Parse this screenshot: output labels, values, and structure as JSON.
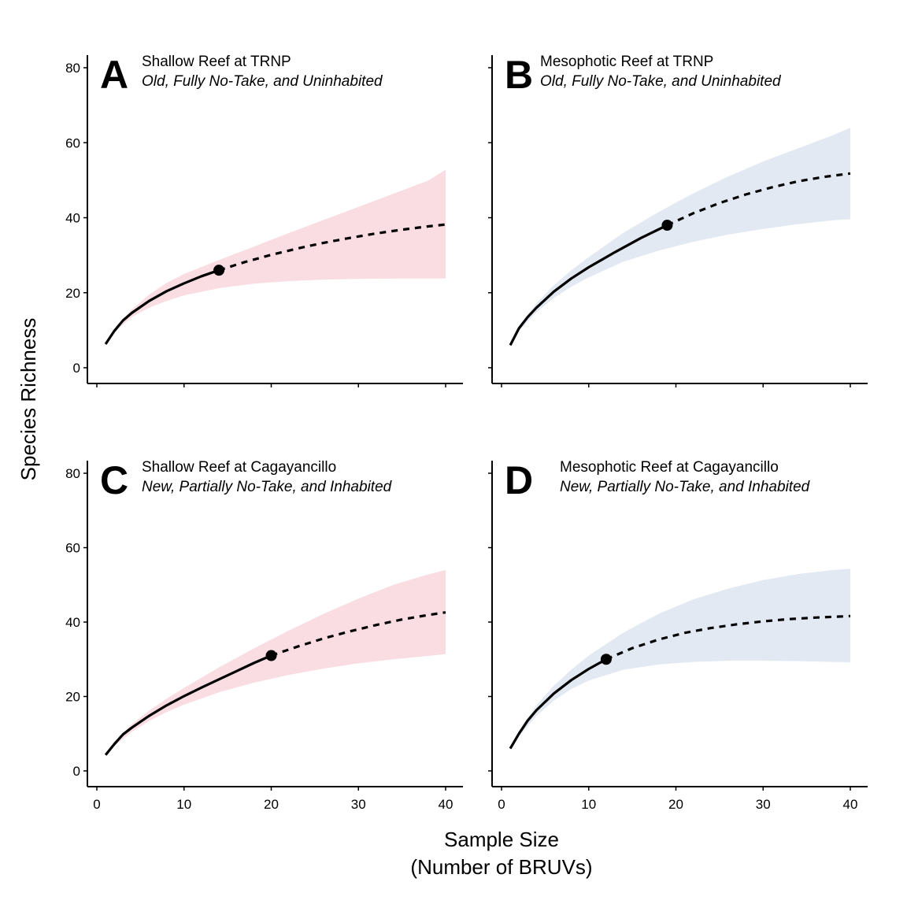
{
  "axis": {
    "xlabel_line1": "Sample Size",
    "xlabel_line2": "(Number of BRUVs)",
    "ylabel": "Species Richness"
  },
  "colors": {
    "shallow_band": "#f9dde2",
    "mesophotic_band": "#e2e9f3",
    "line": "#000000"
  },
  "chart_data": [
    {
      "type": "line",
      "panel": "A",
      "title": "Shallow Reef at TRNP",
      "subtitle": "Old, Fully No-Take, and Uninhabited",
      "band_color": "#f9dde2",
      "xlim": [
        0,
        40
      ],
      "ylim": [
        0,
        80
      ],
      "xticks": [
        0,
        10,
        20,
        30,
        40
      ],
      "yticks": [
        0,
        20,
        40,
        60,
        80
      ],
      "show_x_tick_labels": false,
      "show_y_tick_labels": true,
      "observed_point": {
        "x": 14,
        "y": 26
      },
      "series": [
        {
          "style": "solid",
          "x": [
            1,
            2,
            3,
            4,
            6,
            8,
            10,
            12,
            14
          ],
          "y": [
            6.3,
            9.8,
            12.6,
            14.6,
            17.8,
            20.4,
            22.5,
            24.4,
            26
          ]
        },
        {
          "style": "dashed",
          "x": [
            14,
            17,
            20,
            23,
            26,
            29,
            32,
            35,
            38,
            40
          ],
          "y": [
            26,
            28.2,
            30.1,
            31.8,
            33.3,
            34.6,
            35.8,
            36.8,
            37.7,
            38.2
          ]
        }
      ],
      "ribbon": {
        "x": [
          1,
          2,
          4,
          6,
          8,
          10,
          14,
          18,
          22,
          26,
          30,
          34,
          38,
          40
        ],
        "lower": [
          6,
          9.5,
          13.5,
          16,
          17.8,
          19.3,
          21.2,
          22.4,
          23.1,
          23.5,
          23.7,
          23.8,
          23.8,
          23.8
        ],
        "upper": [
          6.6,
          10.3,
          15.5,
          19.5,
          22.6,
          25,
          28.7,
          32.3,
          35.9,
          39.4,
          42.9,
          46.4,
          49.9,
          52.8
        ]
      }
    },
    {
      "type": "line",
      "panel": "B",
      "title": "Mesophotic Reef at TRNP",
      "subtitle": "Old, Fully No-Take, and Uninhabited",
      "band_color": "#e2e9f3",
      "xlim": [
        0,
        40
      ],
      "ylim": [
        0,
        80
      ],
      "xticks": [
        0,
        10,
        20,
        30,
        40
      ],
      "yticks": [
        0,
        20,
        40,
        60,
        80
      ],
      "show_x_tick_labels": false,
      "show_y_tick_labels": false,
      "observed_point": {
        "x": 19,
        "y": 38
      },
      "series": [
        {
          "style": "solid",
          "x": [
            1,
            2,
            3,
            4,
            6,
            8,
            10,
            13,
            16,
            19
          ],
          "y": [
            6,
            10.5,
            13.5,
            16,
            20.3,
            23.8,
            26.8,
            30.8,
            34.6,
            38
          ]
        },
        {
          "style": "dashed",
          "x": [
            19,
            22,
            25,
            28,
            31,
            34,
            37,
            40
          ],
          "y": [
            38,
            41.2,
            43.9,
            46.2,
            48.1,
            49.7,
            50.9,
            51.8
          ]
        }
      ],
      "ribbon": {
        "x": [
          1,
          2,
          4,
          6,
          8,
          10,
          14,
          18,
          22,
          26,
          30,
          34,
          38,
          40
        ],
        "lower": [
          5.5,
          9.8,
          14.8,
          18.6,
          21.6,
          24.1,
          28.3,
          31.2,
          33.6,
          35.5,
          37,
          38.3,
          39.3,
          39.6
        ],
        "upper": [
          6.5,
          11.2,
          17.2,
          22,
          26,
          29.5,
          36,
          41.5,
          46.5,
          51,
          55,
          58.5,
          62,
          64
        ]
      }
    },
    {
      "type": "line",
      "panel": "C",
      "title": "Shallow Reef at Cagayancillo",
      "subtitle": "New, Partially No-Take, and Inhabited",
      "band_color": "#f9dde2",
      "xlim": [
        0,
        40
      ],
      "ylim": [
        0,
        80
      ],
      "xticks": [
        0,
        10,
        20,
        30,
        40
      ],
      "yticks": [
        0,
        20,
        40,
        60,
        80
      ],
      "show_x_tick_labels": true,
      "show_y_tick_labels": true,
      "observed_point": {
        "x": 20,
        "y": 31
      },
      "series": [
        {
          "style": "solid",
          "x": [
            1,
            2,
            3,
            4,
            6,
            8,
            10,
            12,
            14,
            16,
            18,
            20
          ],
          "y": [
            4.3,
            7.2,
            9.8,
            11.6,
            14.8,
            17.6,
            20.1,
            22.4,
            24.6,
            26.8,
            29,
            31
          ]
        },
        {
          "style": "dashed",
          "x": [
            20,
            23,
            26,
            29,
            32,
            35,
            38,
            40
          ],
          "y": [
            31,
            33.4,
            35.6,
            37.5,
            39.2,
            40.7,
            41.9,
            42.6
          ]
        }
      ],
      "ribbon": {
        "x": [
          1,
          2,
          4,
          6,
          8,
          10,
          14,
          18,
          22,
          26,
          30,
          34,
          38,
          40
        ],
        "lower": [
          4,
          6.7,
          10.5,
          13.4,
          15.8,
          17.8,
          21.1,
          23.7,
          25.8,
          27.5,
          28.9,
          30,
          30.9,
          31.4
        ],
        "upper": [
          4.6,
          7.8,
          12.5,
          16.2,
          19.4,
          22.3,
          27.8,
          32.9,
          37.7,
          42.2,
          46.3,
          50,
          52.8,
          54
        ]
      }
    },
    {
      "type": "line",
      "panel": "D",
      "title": "Mesophotic Reef at Cagayancillo",
      "subtitle": "New, Partially No-Take, and Inhabited",
      "band_color": "#e2e9f3",
      "xlim": [
        0,
        40
      ],
      "ylim": [
        0,
        80
      ],
      "xticks": [
        0,
        10,
        20,
        30,
        40
      ],
      "yticks": [
        0,
        20,
        40,
        60,
        80
      ],
      "show_x_tick_labels": true,
      "show_y_tick_labels": false,
      "observed_point": {
        "x": 12,
        "y": 30
      },
      "series": [
        {
          "style": "solid",
          "x": [
            1,
            2,
            3,
            4,
            6,
            8,
            10,
            12
          ],
          "y": [
            6,
            10,
            13.5,
            16.3,
            20.8,
            24.4,
            27.4,
            30
          ]
        },
        {
          "style": "dashed",
          "x": [
            12,
            15,
            18,
            21,
            24,
            27,
            30,
            33,
            36,
            40
          ],
          "y": [
            30,
            33,
            35.3,
            37.1,
            38.4,
            39.4,
            40.2,
            40.8,
            41.2,
            41.6
          ]
        }
      ],
      "ribbon": {
        "x": [
          1,
          2,
          4,
          6,
          8,
          10,
          14,
          18,
          22,
          26,
          30,
          34,
          38,
          40
        ],
        "lower": [
          5.5,
          9.3,
          14.8,
          18.9,
          22,
          24.3,
          27.2,
          28.6,
          29.3,
          29.6,
          29.6,
          29.5,
          29.3,
          29.2
        ],
        "upper": [
          6.5,
          10.8,
          17.6,
          22.9,
          27.2,
          31,
          37.2,
          42.2,
          46.1,
          49,
          51.3,
          52.9,
          54,
          54.3
        ]
      }
    }
  ]
}
